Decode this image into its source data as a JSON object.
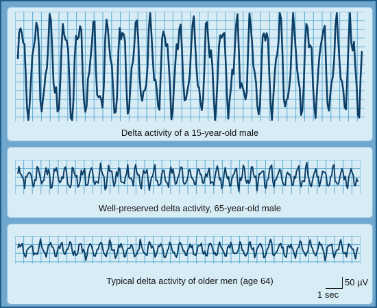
{
  "traces": [
    {
      "caption": "Delta activity of a 15-year-old male"
    },
    {
      "caption": "Well-preserved delta activity, 65-year-old male"
    },
    {
      "caption": "Typical delta activity of older men (age 64)"
    }
  ],
  "scale": {
    "amplitude_label": "50 µV",
    "time_label": "1 sec"
  },
  "colors": {
    "background": "#6fa7cf",
    "panel": "#d8ecf6",
    "grid": "#5aa9cf",
    "trace": "#0d3f66"
  }
}
